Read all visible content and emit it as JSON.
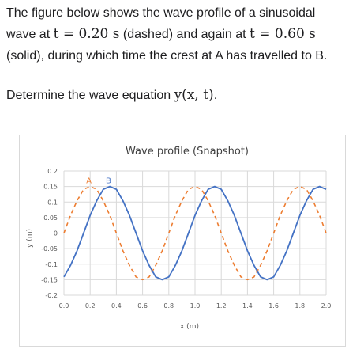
{
  "question": {
    "line1_prefix": "The figure below shows the wave profile of a sinusoidal",
    "line2_wave_at": "wave at",
    "line2_t1": "t = 0.20 s",
    "line2_dashed": "(dashed) and again at",
    "line2_t2": "t = 0.60 s",
    "line3": "(solid), during which time the crest at A has travelled to B.",
    "prompt_text": "Determine the wave equation",
    "prompt_math": "y(x, t)",
    "prompt_end": "."
  },
  "colors": {
    "solid": "#4472c4",
    "dashed": "#ed7d31",
    "grid": "#d9d9d9",
    "text": "#1d1d1f"
  },
  "chart_data": {
    "type": "line",
    "title": "Wave profile (Snapshot)",
    "xlabel": "x (m)",
    "ylabel": "y (m)",
    "xlim": [
      0,
      2.0
    ],
    "ylim": [
      -0.2,
      0.2
    ],
    "x_ticks": [
      "0.0",
      "0.2",
      "0.4",
      "0.6",
      "0.8",
      "1.0",
      "1.2",
      "1.4",
      "1.6",
      "1.8",
      "2.0"
    ],
    "y_ticks": [
      "0.2",
      "0.15",
      "0.1",
      "0.05",
      "0",
      "-0.05",
      "-0.1",
      "-0.15",
      "-0.2"
    ],
    "grid": true,
    "x": [
      0.0,
      0.05,
      0.1,
      0.15,
      0.2,
      0.25,
      0.3,
      0.35,
      0.4,
      0.45,
      0.5,
      0.55,
      0.6,
      0.65,
      0.7,
      0.75,
      0.8,
      0.85,
      0.9,
      0.95,
      1.0,
      1.05,
      1.1,
      1.15,
      1.2,
      1.25,
      1.3,
      1.35,
      1.4,
      1.45,
      1.5,
      1.55,
      1.6,
      1.65,
      1.7,
      1.75,
      1.8,
      1.85,
      1.9,
      1.95,
      2.0
    ],
    "series": [
      {
        "style": "dashed",
        "values": [
          0.0,
          0.057,
          0.104,
          0.141,
          0.15,
          0.141,
          0.104,
          0.057,
          0.0,
          -0.057,
          -0.104,
          -0.141,
          -0.15,
          -0.141,
          -0.104,
          -0.057,
          0.0,
          0.057,
          0.104,
          0.141,
          0.15,
          0.141,
          0.104,
          0.057,
          0.0,
          -0.057,
          -0.104,
          -0.141,
          -0.15,
          -0.141,
          -0.104,
          -0.057,
          0.0,
          0.057,
          0.104,
          0.141,
          0.15,
          0.141,
          0.104,
          0.057,
          0.0
        ]
      },
      {
        "style": "solid",
        "values": [
          -0.141,
          -0.104,
          -0.057,
          0.0,
          0.057,
          0.104,
          0.141,
          0.15,
          0.141,
          0.104,
          0.057,
          0.0,
          -0.057,
          -0.104,
          -0.141,
          -0.15,
          -0.141,
          -0.104,
          -0.057,
          0.0,
          0.057,
          0.104,
          0.141,
          0.15,
          0.141,
          0.104,
          0.057,
          0.0,
          -0.057,
          -0.104,
          -0.141,
          -0.15,
          -0.141,
          -0.104,
          -0.057,
          0.0,
          0.057,
          0.104,
          0.141,
          0.15,
          0.141
        ]
      }
    ],
    "annotations": [
      {
        "text": "A",
        "x": 0.2,
        "y": 0.15,
        "series": "dashed"
      },
      {
        "text": "B",
        "x": 0.35,
        "y": 0.15,
        "series": "solid"
      }
    ]
  }
}
